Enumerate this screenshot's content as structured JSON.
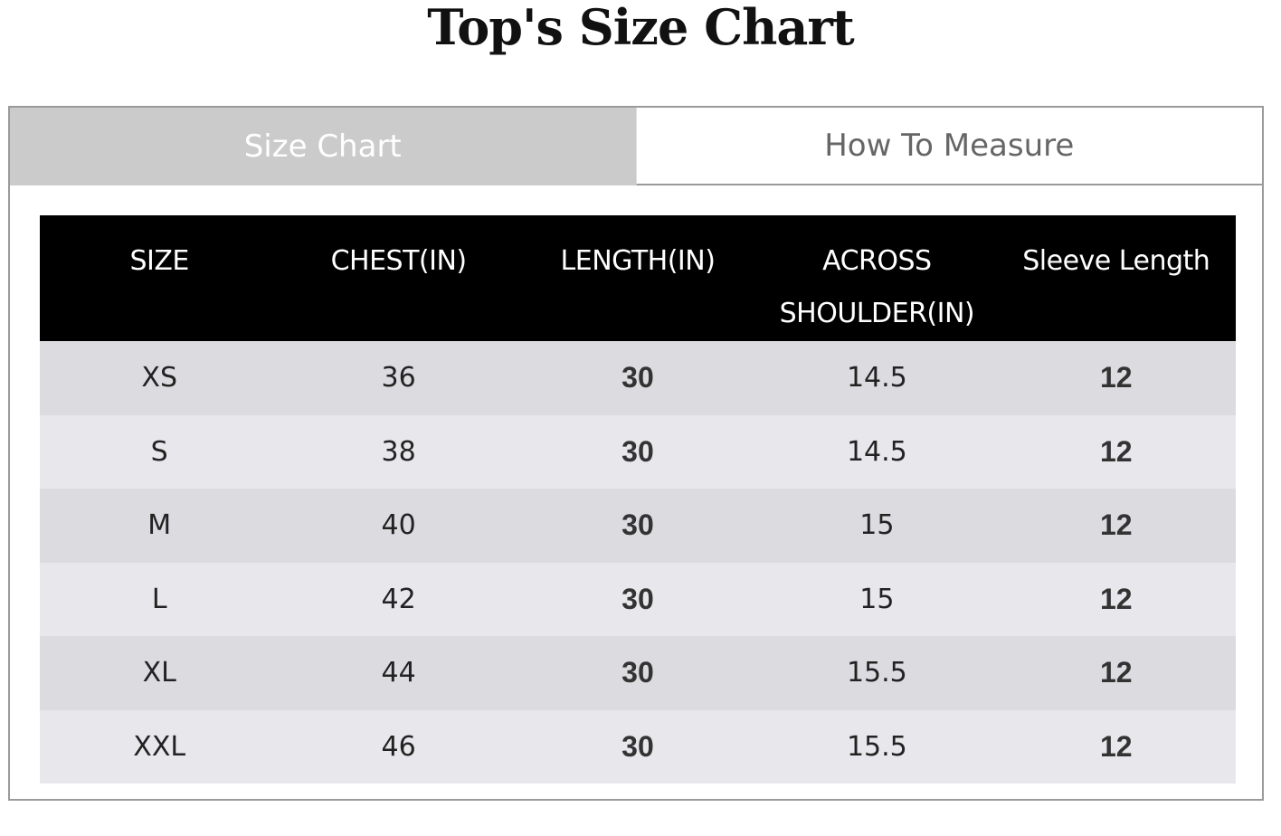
{
  "title": "Top's Size Chart",
  "tabs": [
    {
      "label": "Size Chart",
      "active": true
    },
    {
      "label": "How To Measure",
      "active": false
    }
  ],
  "table": {
    "headers": [
      "SIZE",
      "CHEST(IN)",
      "LENGTH(IN)",
      "ACROSS SHOULDER(IN)",
      "Sleeve Length"
    ],
    "rows": [
      [
        "XS",
        "36",
        "30",
        "14.5",
        "12"
      ],
      [
        "S",
        "38",
        "30",
        "14.5",
        "12"
      ],
      [
        "M",
        "40",
        "30",
        "15",
        "12"
      ],
      [
        "L",
        "42",
        "30",
        "15",
        "12"
      ],
      [
        "XL",
        "44",
        "30",
        "15.5",
        "12"
      ],
      [
        "XXL",
        "46",
        "30",
        "15.5",
        "12"
      ]
    ]
  },
  "colors": {
    "header_bg": "#000000",
    "active_tab_bg": "#cbcbcb",
    "row_odd": "#dcdce0",
    "row_even": "#e8e8ec"
  }
}
